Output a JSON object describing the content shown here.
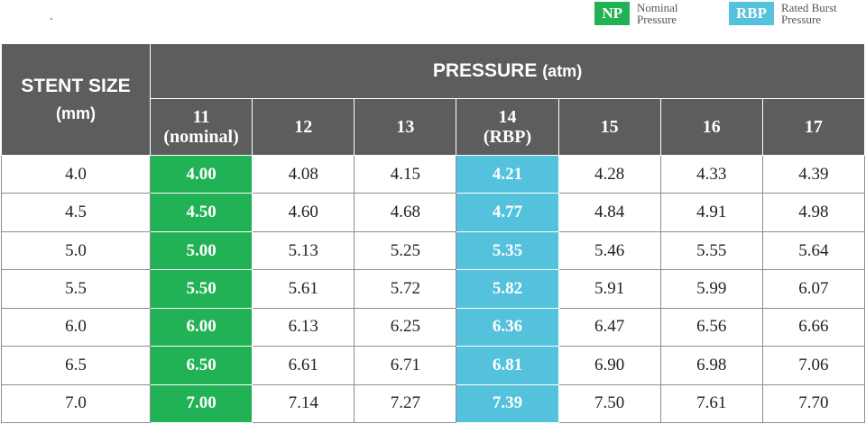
{
  "legend": {
    "np_badge": "NP",
    "np_text_1": "Nominal",
    "np_text_2": "Pressure",
    "rbp_badge": "RBP",
    "rbp_text_1": "Rated Burst",
    "rbp_text_2": "Pressure",
    "colors": {
      "np": "#21b255",
      "rbp": "#54c2dc",
      "header": "#5c5d5d"
    }
  },
  "table": {
    "stent_header": "STENT SIZE",
    "stent_unit": "(mm)",
    "pressure_header": "PRESSURE",
    "pressure_unit": "(atm)",
    "columns": [
      {
        "label": "11",
        "sub": "(nominal)"
      },
      {
        "label": "12",
        "sub": ""
      },
      {
        "label": "13",
        "sub": ""
      },
      {
        "label": "14",
        "sub": "(RBP)"
      },
      {
        "label": "15",
        "sub": ""
      },
      {
        "label": "16",
        "sub": ""
      },
      {
        "label": "17",
        "sub": ""
      }
    ],
    "rows": [
      {
        "size": "4.0",
        "values": [
          "4.00",
          "4.08",
          "4.15",
          "4.21",
          "4.28",
          "4.33",
          "4.39"
        ]
      },
      {
        "size": "4.5",
        "values": [
          "4.50",
          "4.60",
          "4.68",
          "4.77",
          "4.84",
          "4.91",
          "4.98"
        ]
      },
      {
        "size": "5.0",
        "values": [
          "5.00",
          "5.13",
          "5.25",
          "5.35",
          "5.46",
          "5.55",
          "5.64"
        ]
      },
      {
        "size": "5.5",
        "values": [
          "5.50",
          "5.61",
          "5.72",
          "5.82",
          "5.91",
          "5.99",
          "6.07"
        ]
      },
      {
        "size": "6.0",
        "values": [
          "6.00",
          "6.13",
          "6.25",
          "6.36",
          "6.47",
          "6.56",
          "6.66"
        ]
      },
      {
        "size": "6.5",
        "values": [
          "6.50",
          "6.61",
          "6.71",
          "6.81",
          "6.90",
          "6.98",
          "7.06"
        ]
      },
      {
        "size": "7.0",
        "values": [
          "7.00",
          "7.14",
          "7.27",
          "7.39",
          "7.50",
          "7.61",
          "7.70"
        ]
      }
    ]
  }
}
